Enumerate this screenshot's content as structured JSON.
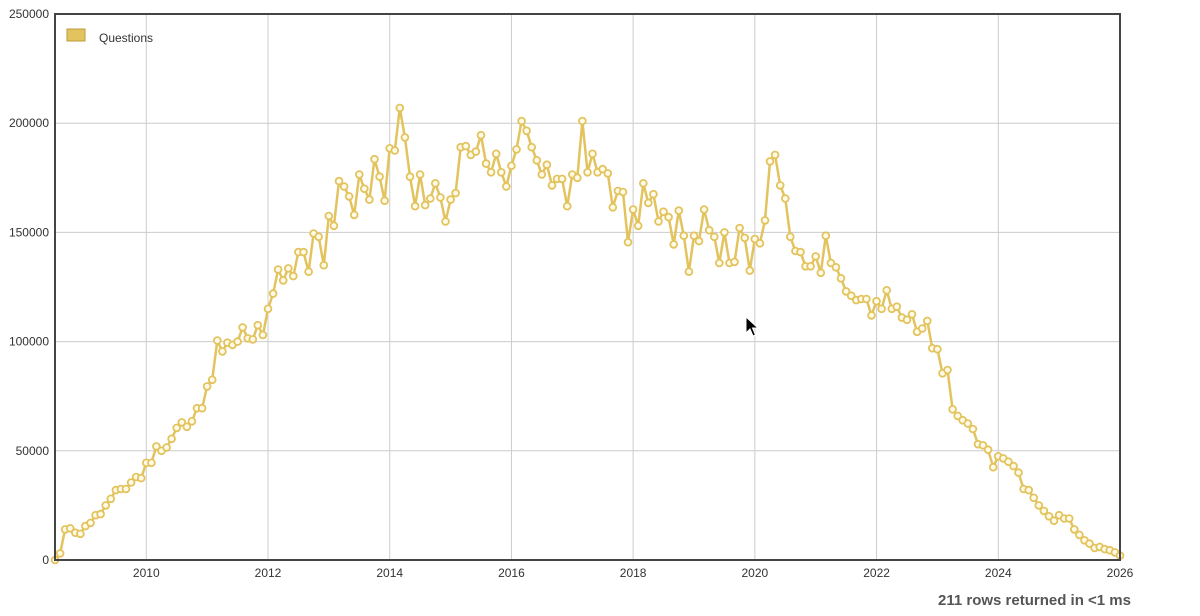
{
  "chart_data": {
    "type": "line",
    "xlim": [
      2008.5,
      2026.0
    ],
    "ylim": [
      0,
      250000
    ],
    "x_ticks": [
      2010,
      2012,
      2014,
      2016,
      2018,
      2020,
      2022,
      2024,
      2026
    ],
    "y_ticks": [
      0,
      50000,
      100000,
      150000,
      200000,
      250000
    ],
    "x_tick_labels": [
      "2010",
      "2012",
      "2014",
      "2016",
      "2018",
      "2020",
      "2022",
      "2024",
      "2026"
    ],
    "y_tick_labels": [
      "0",
      "50000",
      "100000",
      "150000",
      "200000",
      "250000"
    ],
    "grid": true,
    "legend_position": "top-left",
    "series": [
      {
        "name": "Questions",
        "color": "#e3c35e",
        "x_start": 2008.5,
        "x_step": 0.08333,
        "values": [
          0,
          3000,
          14000,
          14500,
          12500,
          12000,
          15500,
          17000,
          20500,
          21000,
          25000,
          28000,
          32000,
          32500,
          32500,
          35500,
          38000,
          37500,
          44500,
          44500,
          52000,
          50000,
          51500,
          55500,
          60500,
          63000,
          61000,
          63500,
          69500,
          69500,
          79500,
          82500,
          100500,
          95500,
          99500,
          98500,
          100000,
          106500,
          101500,
          101000,
          107500,
          103000,
          115000,
          122000,
          133000,
          128000,
          133500,
          130000,
          141000,
          141000,
          132000,
          149500,
          148000,
          135000,
          157500,
          153000,
          173500,
          171000,
          166500,
          158000,
          176500,
          170000,
          165000,
          183500,
          175500,
          164500,
          188500,
          187500,
          207000,
          193500,
          175500,
          162000,
          176500,
          162500,
          165500,
          172500,
          166000,
          155000,
          165000,
          168000,
          189000,
          189500,
          185500,
          187000,
          194500,
          181500,
          177500,
          186000,
          177500,
          171000,
          180500,
          188000,
          201000,
          196500,
          189000,
          183000,
          176500,
          181000,
          171500,
          174500,
          174500,
          162000,
          176500,
          175000,
          201000,
          177500,
          186000,
          177500,
          179000,
          177000,
          161500,
          169000,
          168500,
          145500,
          160500,
          153000,
          172500,
          163500,
          167500,
          155000,
          159500,
          157000,
          144500,
          160000,
          148500,
          132000,
          148500,
          146000,
          160500,
          151000,
          148000,
          136000,
          150000,
          136000,
          136500,
          152000,
          147500,
          132500,
          147000,
          145000,
          155500,
          182500,
          185500,
          171500,
          165500,
          148000,
          141500,
          141000,
          134500,
          134500,
          139000,
          131500,
          148500,
          136000,
          134000,
          129000,
          123000,
          121000,
          119000,
          119500,
          119500,
          112000,
          118500,
          115000,
          123500,
          115000,
          116000,
          111000,
          110000,
          112500,
          104500,
          106000,
          109500,
          97000,
          96500,
          85500,
          87000,
          69000,
          66000,
          64000,
          62500,
          60000,
          53000,
          52500,
          50500,
          42500,
          47500,
          46500,
          45000,
          43000,
          40000,
          32500,
          32000,
          28500,
          25000,
          22500,
          20000,
          18000,
          20500,
          19000,
          19000,
          14000,
          11500,
          9000,
          7500,
          5500,
          6000,
          5000,
          4500,
          3500,
          2000
        ]
      }
    ]
  },
  "legend": {
    "label": "Questions",
    "swatch_color": "#e3c35e"
  },
  "status": {
    "text": "211 rows returned in <1 ms"
  }
}
